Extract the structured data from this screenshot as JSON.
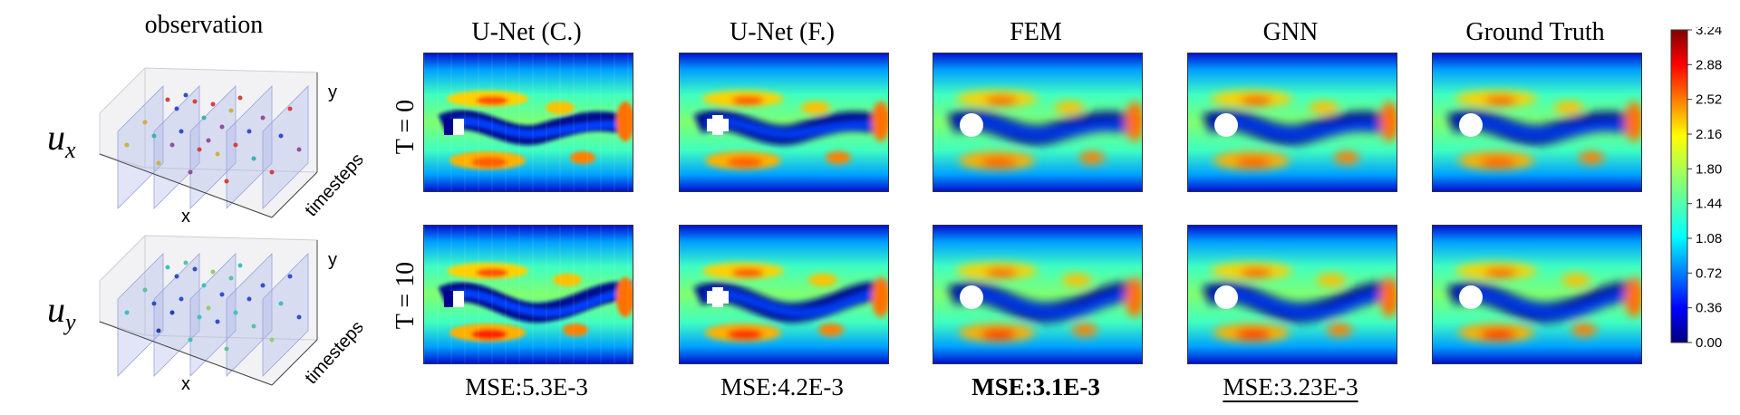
{
  "observation": {
    "title": "observation",
    "ux_label": "u_x",
    "uy_label": "u_y",
    "axis_x": "x",
    "axis_y": "y",
    "axis_t": "timesteps"
  },
  "methods": [
    {
      "name": "U-Net (C.)",
      "mse": "MSE:5.3E-3",
      "style": "coarse"
    },
    {
      "name": "U-Net (F.)",
      "mse": "MSE:4.2E-3",
      "style": "fine"
    },
    {
      "name": "FEM",
      "mse": "MSE:3.1E-3",
      "style": "smooth",
      "emphasis": "bold"
    },
    {
      "name": "GNN",
      "mse": "MSE:3.23E-3",
      "style": "smooth",
      "emphasis": "underline"
    },
    {
      "name": "Ground Truth",
      "mse": "",
      "style": "smooth"
    }
  ],
  "rows": [
    {
      "label": "T = 0"
    },
    {
      "label": "T = 10"
    }
  ],
  "colorbar": {
    "ticks": [
      "3.24",
      "2.88",
      "2.52",
      "2.16",
      "1.80",
      "1.44",
      "1.08",
      "0.72",
      "0.36",
      "0.00"
    ],
    "min": 0.0,
    "max": 3.24,
    "colormap": "jet",
    "colors": [
      "#00007f",
      "#0000ff",
      "#007fff",
      "#00ffff",
      "#7fff7f",
      "#ffff00",
      "#ff7f00",
      "#ff0000",
      "#7f0000"
    ]
  }
}
